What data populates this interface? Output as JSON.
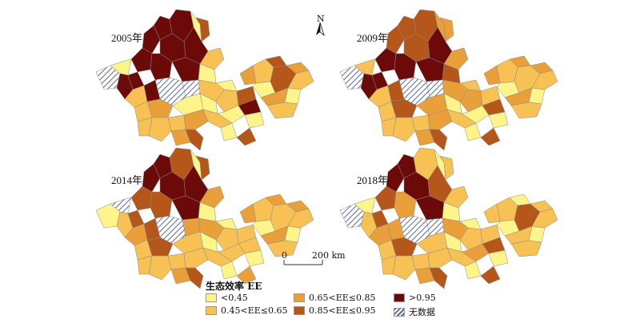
{
  "panels": [
    {
      "label": "2005年",
      "key": "p2005"
    },
    {
      "label": "2009年",
      "key": "p2009"
    },
    {
      "label": "2014年",
      "key": "p2014"
    },
    {
      "label": "2018年",
      "key": "p2018"
    }
  ],
  "north_arrow": {
    "label": "N"
  },
  "scale_bar": {
    "start_label": "0",
    "end_label": "200 km"
  },
  "legend": {
    "title": "生态效率 EE",
    "classes": [
      {
        "label": "<0.45",
        "color": "#fdf48a"
      },
      {
        "label": "0.45<EE≤0.65",
        "color": "#f7c253"
      },
      {
        "label": "0.65<EE≤0.85",
        "color": "#eaa03a"
      },
      {
        "label": "0.85<EE≤0.95",
        "color": "#b5571a"
      },
      {
        "label": ">0.95",
        "color": "#6b0a08"
      },
      {
        "label": "无数据",
        "color": "hatch"
      }
    ]
  }
}
